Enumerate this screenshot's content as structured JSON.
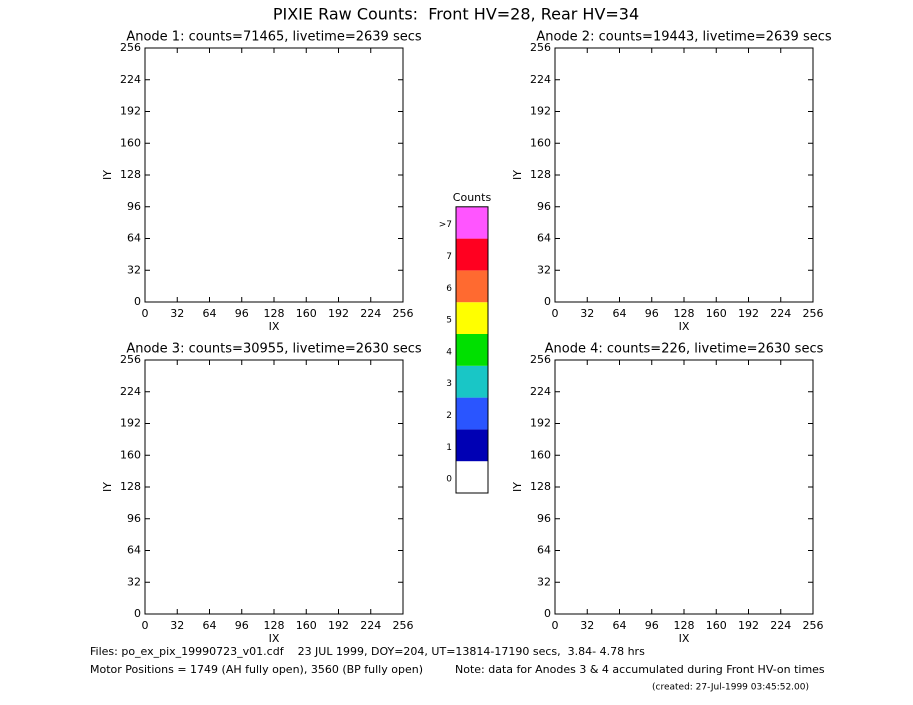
{
  "title": "PIXIE Raw Counts:  Front HV=28, Rear HV=34",
  "chart_data": [
    {
      "type": "heatmap",
      "title": "Anode 1: counts=71465, livetime=2639 secs",
      "xlabel": "IX",
      "ylabel": "IY",
      "xlim": [
        0,
        256
      ],
      "ylim": [
        0,
        256
      ],
      "xticks": [
        0,
        32,
        64,
        96,
        128,
        160,
        192,
        224,
        256
      ],
      "yticks": [
        0,
        32,
        64,
        96,
        128,
        160,
        192,
        224,
        256
      ]
    },
    {
      "type": "heatmap",
      "title": "Anode 2: counts=19443, livetime=2639 secs",
      "xlabel": "IX",
      "ylabel": "IY",
      "xlim": [
        0,
        256
      ],
      "ylim": [
        0,
        256
      ],
      "xticks": [
        0,
        32,
        64,
        96,
        128,
        160,
        192,
        224,
        256
      ],
      "yticks": [
        0,
        32,
        64,
        96,
        128,
        160,
        192,
        224,
        256
      ]
    },
    {
      "type": "heatmap",
      "title": "Anode 3: counts=30955, livetime=2630 secs",
      "xlabel": "IX",
      "ylabel": "IY",
      "xlim": [
        0,
        256
      ],
      "ylim": [
        0,
        256
      ],
      "xticks": [
        0,
        32,
        64,
        96,
        128,
        160,
        192,
        224,
        256
      ],
      "yticks": [
        0,
        32,
        64,
        96,
        128,
        160,
        192,
        224,
        256
      ]
    },
    {
      "type": "heatmap",
      "title": "Anode 4: counts=226, livetime=2630 secs",
      "xlabel": "IX",
      "ylabel": "IY",
      "xlim": [
        0,
        256
      ],
      "ylim": [
        0,
        256
      ],
      "xticks": [
        0,
        32,
        64,
        96,
        128,
        160,
        192,
        224,
        256
      ],
      "yticks": [
        0,
        32,
        64,
        96,
        128,
        160,
        192,
        224,
        256
      ]
    }
  ],
  "colorbar": {
    "title": "Counts",
    "levels": [
      {
        "label": "0",
        "color": "#ffffff"
      },
      {
        "label": "1",
        "color": "#0000b4"
      },
      {
        "label": "2",
        "color": "#2a55ff"
      },
      {
        "label": "3",
        "color": "#19c6c6"
      },
      {
        "label": "4",
        "color": "#00e000"
      },
      {
        "label": "5",
        "color": "#ffff00"
      },
      {
        "label": "6",
        "color": "#ff6a30"
      },
      {
        "label": "7",
        "color": "#ff0020"
      },
      {
        "label": ">7",
        "color": "#ff55ff"
      }
    ]
  },
  "footer": {
    "files": "Files: po_ex_pix_19990723_v01.cdf    23 JUL 1999, DOY=204, UT=13814-17190 secs,  3.84- 4.78 hrs",
    "motor": "Motor Positions = 1749 (AH fully open), 3560 (BP fully open)",
    "note": "Note: data for Anodes 3 & 4 accumulated during Front HV-on times",
    "created": "(created: 27-Jul-1999 03:45:52.00)"
  }
}
